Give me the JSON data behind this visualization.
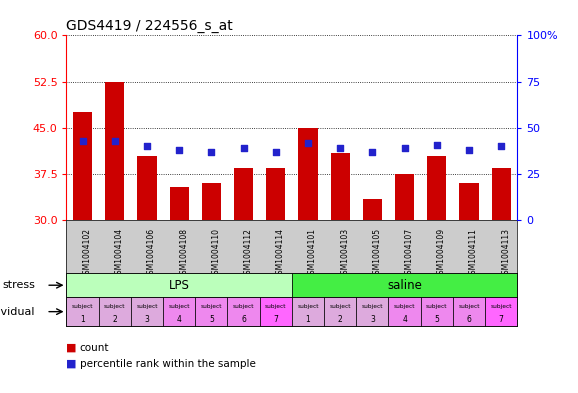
{
  "title": "GDS4419 / 224556_s_at",
  "samples": [
    "GSM1004102",
    "GSM1004104",
    "GSM1004106",
    "GSM1004108",
    "GSM1004110",
    "GSM1004112",
    "GSM1004114",
    "GSM1004101",
    "GSM1004103",
    "GSM1004105",
    "GSM1004107",
    "GSM1004109",
    "GSM1004111",
    "GSM1004113"
  ],
  "counts": [
    47.5,
    52.5,
    40.5,
    35.5,
    36.0,
    38.5,
    38.5,
    45.0,
    41.0,
    33.5,
    37.5,
    40.5,
    36.0,
    38.5
  ],
  "percentiles_pct": [
    43,
    43,
    40,
    38,
    37,
    39,
    37,
    42,
    39,
    37,
    39,
    41,
    38,
    40
  ],
  "ylim_left": [
    30,
    60
  ],
  "ylim_right": [
    0,
    100
  ],
  "yticks_left": [
    30,
    37.5,
    45,
    52.5,
    60
  ],
  "yticks_right": [
    0,
    25,
    50,
    75,
    100
  ],
  "bar_color": "#cc0000",
  "dot_color": "#2222cc",
  "stress_lps_color": "#bbffbb",
  "stress_saline_color": "#44ee44",
  "indiv_colors": [
    "#ddaadd",
    "#ddaadd",
    "#ddaadd",
    "#ee88ee",
    "#ee88ee",
    "#ee88ee",
    "#ff66ff",
    "#ddaadd",
    "#ddaadd",
    "#ddaadd",
    "#ee88ee",
    "#ee88ee",
    "#ee88ee",
    "#ff66ff"
  ],
  "stress_labels": [
    "LPS",
    "saline"
  ],
  "individual_labels_top": [
    "subject",
    "subject",
    "subject",
    "subject",
    "subject",
    "subject",
    "subject",
    "subject",
    "subject",
    "subject",
    "subject",
    "subject",
    "subject",
    "subject"
  ],
  "individual_labels_bottom": [
    "1",
    "2",
    "3",
    "4",
    "5",
    "6",
    "7",
    "1",
    "2",
    "3",
    "4",
    "5",
    "6",
    "7"
  ],
  "lps_count": 7,
  "saline_count": 7,
  "xtick_bg_color": "#cccccc"
}
